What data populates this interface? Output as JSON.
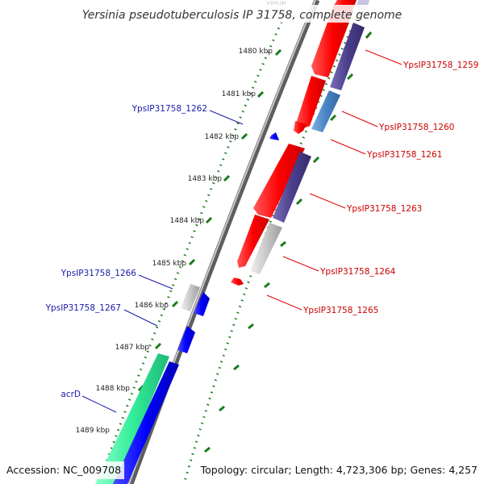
{
  "title": "Yersinia pseudotuberculosis IP 31758, complete genome",
  "footer": {
    "accession": "Accession: NC_009708",
    "summary": "Topology: circular; Length: 4,723,306 bp; Genes: 4,257"
  },
  "ticks": [
    {
      "label": "1480 kbp"
    },
    {
      "label": "1481 kbp"
    },
    {
      "label": "1482 kbp"
    },
    {
      "label": "1483 kbp"
    },
    {
      "label": "1484 kbp"
    },
    {
      "label": "1485 kbp"
    },
    {
      "label": "1486 kbp"
    },
    {
      "label": "1487 kbp"
    },
    {
      "label": "1488 kbp"
    },
    {
      "label": "1489 kbp"
    }
  ],
  "gene_labels": {
    "forward": [
      {
        "name": "YpsIP31758_1259"
      },
      {
        "name": "YpsIP31758_1260"
      },
      {
        "name": "YpsIP31758_1261"
      },
      {
        "name": "YpsIP31758_1263"
      },
      {
        "name": "YpsIP31758_1264"
      },
      {
        "name": "YpsIP31758_1265"
      }
    ],
    "reverse": [
      {
        "name": "YpsIP31758_1262"
      },
      {
        "name": "YpsIP31758_1266"
      },
      {
        "name": "YpsIP31758_1267"
      },
      {
        "name": "acrD"
      }
    ]
  },
  "colors": {
    "forward_cds": "#ff0000",
    "reverse_cds": "#0000ff",
    "forward_rna": "#4b3f8c",
    "forward_other": "#4a84c6",
    "pseudo": "#c8c8c8",
    "acrD": "#33ee99",
    "backbone": "#777777",
    "tick": "#1a7a1a",
    "forward_label": "#cc0000",
    "reverse_label": "#1a1aaa"
  }
}
